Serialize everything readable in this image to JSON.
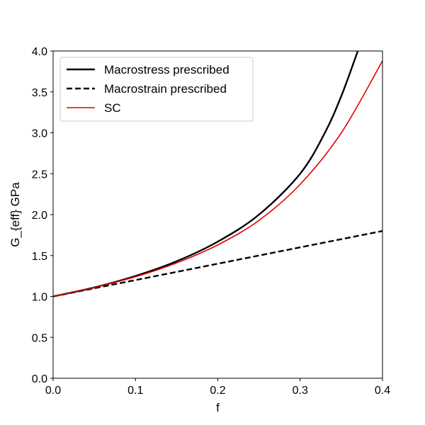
{
  "chart_data": {
    "type": "line",
    "title": "",
    "xlabel": "f",
    "ylabel": "G_{eff} GPa",
    "xlim": [
      0.0,
      0.4
    ],
    "ylim": [
      0.0,
      4.0
    ],
    "xticks": [
      "0.0",
      "0.1",
      "0.2",
      "0.3",
      "0.4"
    ],
    "yticks": [
      "0.0",
      "0.5",
      "1.0",
      "1.5",
      "2.0",
      "2.5",
      "3.0",
      "3.5",
      "4.0"
    ],
    "grid": false,
    "legend_position": "top-left",
    "series": [
      {
        "name": "Macrostress prescribed",
        "color": "#000000",
        "style": "solid",
        "x": [
          0.0,
          0.05,
          0.1,
          0.15,
          0.2,
          0.25,
          0.3,
          0.33,
          0.35,
          0.37
        ],
        "y": [
          1.0,
          1.11,
          1.25,
          1.43,
          1.67,
          2.0,
          2.5,
          3.0,
          3.45,
          4.0
        ]
      },
      {
        "name": "Macrostrain prescribed",
        "color": "#000000",
        "style": "dashed",
        "x": [
          0.0,
          0.05,
          0.1,
          0.15,
          0.2,
          0.25,
          0.3,
          0.35,
          0.4
        ],
        "y": [
          1.0,
          1.1,
          1.2,
          1.3,
          1.4,
          1.5,
          1.6,
          1.7,
          1.8
        ]
      },
      {
        "name": "SC",
        "color": "#e00000",
        "style": "solid",
        "x": [
          0.0,
          0.05,
          0.1,
          0.15,
          0.2,
          0.25,
          0.3,
          0.35,
          0.4
        ],
        "y": [
          1.0,
          1.11,
          1.24,
          1.41,
          1.63,
          1.93,
          2.37,
          3.0,
          3.88
        ]
      }
    ]
  }
}
